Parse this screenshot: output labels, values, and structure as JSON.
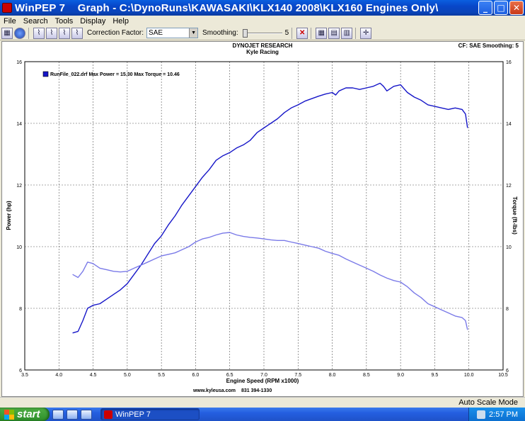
{
  "window": {
    "app_name": "WinPEP 7",
    "title": "Graph - C:\\DynoRuns\\KAWASAKI\\KLX140 2008\\KLX160 Engines Only\\",
    "buttons": {
      "minimize": "_",
      "maximize": "□",
      "close": "✕"
    }
  },
  "menu": {
    "items": [
      "File",
      "Search",
      "Tools",
      "Display",
      "Help"
    ]
  },
  "toolbar": {
    "correction_label": "Correction Factor:",
    "correction_value": "SAE",
    "smoothing_label": "Smoothing:",
    "smoothing_value": "5"
  },
  "graph_header": {
    "company": "DYNOJET RESEARCH",
    "shop": "Kyle Racing",
    "cf_info": "CF: SAE  Smoothing: 5",
    "footer_url": "www.kyleusa.com",
    "footer_phone": "831 394-1330"
  },
  "chart_data": {
    "type": "line",
    "legend": {
      "label": "RunFile_022.drf Max Power = 15.30 Max Torque = 10.46",
      "placement": "top-left"
    },
    "xlabel": "Engine Speed (RPM x1000)",
    "ylabel_left": "Power (hp)",
    "ylabel_right": "Torque (ft-lbs)",
    "xlim": [
      3.5,
      10.5
    ],
    "ylim": [
      6,
      16
    ],
    "xticks": [
      "3.5",
      "4.0",
      "4.5",
      "5.0",
      "5.5",
      "6.0",
      "6.5",
      "7.0",
      "7.5",
      "8.0",
      "8.5",
      "9.0",
      "9.5",
      "10.0",
      "10.5"
    ],
    "yticks": [
      "6",
      "8",
      "10",
      "12",
      "14",
      "16"
    ],
    "grid": true,
    "colors": {
      "power": "#1616c8",
      "torque": "#7a7ae8",
      "grid": "#555555"
    },
    "series": [
      {
        "key": "power",
        "x": [
          4.2,
          4.28,
          4.35,
          4.42,
          4.5,
          4.6,
          4.7,
          4.8,
          4.9,
          5.0,
          5.1,
          5.2,
          5.3,
          5.4,
          5.5,
          5.6,
          5.7,
          5.8,
          5.9,
          6.0,
          6.1,
          6.2,
          6.3,
          6.4,
          6.5,
          6.6,
          6.7,
          6.8,
          6.9,
          7.0,
          7.1,
          7.2,
          7.3,
          7.4,
          7.5,
          7.6,
          7.7,
          7.8,
          7.9,
          8.0,
          8.05,
          8.1,
          8.2,
          8.3,
          8.4,
          8.5,
          8.6,
          8.7,
          8.75,
          8.8,
          8.9,
          9.0,
          9.1,
          9.2,
          9.3,
          9.4,
          9.5,
          9.6,
          9.7,
          9.8,
          9.9,
          9.95,
          9.98
        ],
        "y": [
          7.2,
          7.25,
          7.6,
          8.0,
          8.1,
          8.15,
          8.3,
          8.45,
          8.6,
          8.8,
          9.1,
          9.4,
          9.75,
          10.1,
          10.35,
          10.7,
          11.0,
          11.35,
          11.65,
          11.95,
          12.25,
          12.5,
          12.8,
          12.95,
          13.05,
          13.2,
          13.3,
          13.45,
          13.7,
          13.85,
          14.0,
          14.15,
          14.35,
          14.5,
          14.6,
          14.72,
          14.8,
          14.88,
          14.95,
          15.0,
          14.92,
          15.05,
          15.15,
          15.15,
          15.1,
          15.15,
          15.2,
          15.3,
          15.2,
          15.05,
          15.2,
          15.25,
          15.0,
          14.85,
          14.75,
          14.6,
          14.55,
          14.5,
          14.45,
          14.5,
          14.45,
          14.3,
          13.85
        ]
      },
      {
        "key": "torque",
        "x": [
          4.2,
          4.28,
          4.35,
          4.42,
          4.5,
          4.6,
          4.7,
          4.8,
          4.9,
          5.0,
          5.1,
          5.2,
          5.3,
          5.4,
          5.5,
          5.6,
          5.7,
          5.8,
          5.9,
          6.0,
          6.1,
          6.2,
          6.3,
          6.4,
          6.5,
          6.6,
          6.7,
          6.8,
          6.9,
          7.0,
          7.1,
          7.2,
          7.3,
          7.4,
          7.5,
          7.6,
          7.7,
          7.8,
          7.9,
          8.0,
          8.1,
          8.2,
          8.3,
          8.4,
          8.5,
          8.6,
          8.7,
          8.8,
          8.9,
          9.0,
          9.1,
          9.2,
          9.3,
          9.4,
          9.5,
          9.6,
          9.7,
          9.8,
          9.9,
          9.95,
          9.98
        ],
        "y": [
          9.1,
          9.0,
          9.2,
          9.5,
          9.45,
          9.3,
          9.25,
          9.2,
          9.18,
          9.2,
          9.3,
          9.4,
          9.5,
          9.6,
          9.7,
          9.75,
          9.8,
          9.9,
          10.0,
          10.15,
          10.25,
          10.3,
          10.38,
          10.44,
          10.46,
          10.38,
          10.33,
          10.3,
          10.28,
          10.25,
          10.22,
          10.2,
          10.2,
          10.15,
          10.1,
          10.05,
          10.0,
          9.95,
          9.85,
          9.78,
          9.72,
          9.6,
          9.5,
          9.4,
          9.3,
          9.2,
          9.08,
          8.98,
          8.9,
          8.85,
          8.7,
          8.5,
          8.35,
          8.15,
          8.05,
          7.95,
          7.85,
          7.75,
          7.7,
          7.6,
          7.3
        ]
      }
    ]
  },
  "status": {
    "mode": "Auto Scale Mode"
  },
  "taskbar": {
    "start_label": "start",
    "task_label": "WinPEP 7",
    "clock": "2:57 PM"
  }
}
